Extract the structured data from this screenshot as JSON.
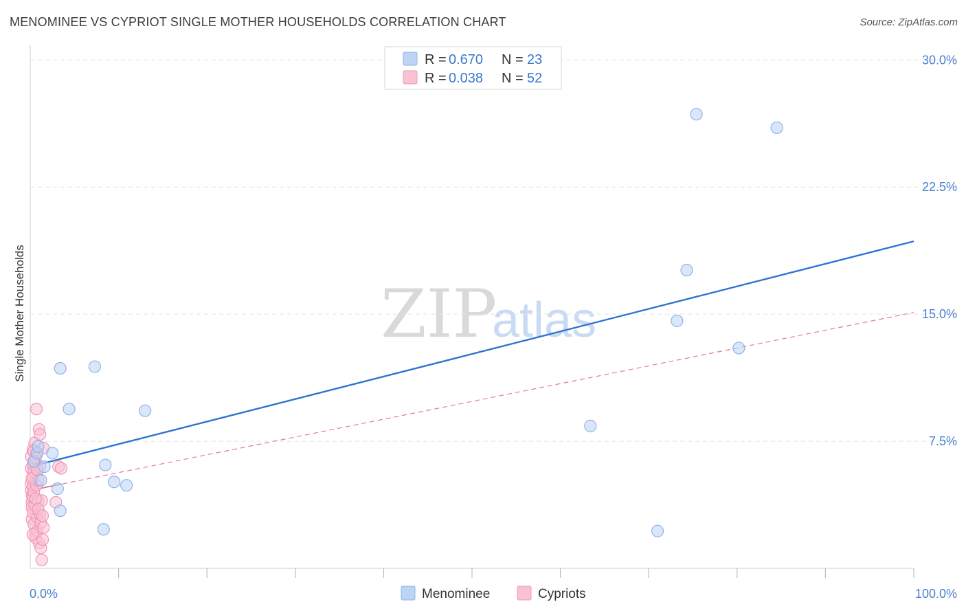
{
  "title": "MENOMINEE VS CYPRIOT SINGLE MOTHER HOUSEHOLDS CORRELATION CHART",
  "source": "Source: ZipAtlas.com",
  "watermark": {
    "zip": "ZIP",
    "atlas": "atlas"
  },
  "colors": {
    "blue_fill": "#bcd4f5",
    "blue_stroke": "#8fb3e6",
    "blue_line": "#2f74d0",
    "pink_fill": "#f9c1d3",
    "pink_stroke": "#f098b6",
    "pink_line": "#e07a9a",
    "grid": "#e3e3e3",
    "axis_text": "#4a7fd0"
  },
  "legend": {
    "rows": [
      {
        "r_label": "R = ",
        "r_value": "0.670",
        "n_label": "N = ",
        "n_value": "23"
      },
      {
        "r_label": "R = ",
        "r_value": "0.038",
        "n_label": "N = ",
        "n_value": "52"
      }
    ]
  },
  "bottom_legend": {
    "series1": "Menominee",
    "series2": "Cypriots"
  },
  "chart_data": {
    "type": "scatter",
    "title": "MENOMINEE VS CYPRIOT SINGLE MOTHER HOUSEHOLDS CORRELATION CHART",
    "xlabel": "",
    "ylabel": "Single Mother Households",
    "xlim": [
      0,
      100
    ],
    "ylim": [
      0,
      30.7
    ],
    "x_tick_labels": {
      "min": "0.0%",
      "max": "100.0%"
    },
    "y_ticks": [
      {
        "value": 30.0,
        "label": "30.0%"
      },
      {
        "value": 22.5,
        "label": "22.5%"
      },
      {
        "value": 15.0,
        "label": "15.0%"
      },
      {
        "value": 7.5,
        "label": "7.5%"
      }
    ],
    "series": [
      {
        "name": "Menominee",
        "color": "blue",
        "R": 0.67,
        "N": 23,
        "trend": {
          "x0": 0,
          "y0": 6.0,
          "x1": 100,
          "y1": 19.3,
          "style": "solid"
        },
        "points": [
          [
            0.4,
            6.3
          ],
          [
            0.8,
            6.8
          ],
          [
            0.9,
            7.2
          ],
          [
            1.2,
            5.2
          ],
          [
            1.6,
            6.0
          ],
          [
            2.5,
            6.8
          ],
          [
            3.4,
            11.8
          ],
          [
            3.4,
            3.4
          ],
          [
            3.1,
            4.7
          ],
          [
            4.4,
            9.4
          ],
          [
            7.3,
            11.9
          ],
          [
            8.3,
            2.3
          ],
          [
            8.5,
            6.1
          ],
          [
            9.5,
            5.1
          ],
          [
            10.9,
            4.9
          ],
          [
            13.0,
            9.3
          ],
          [
            63.4,
            8.4
          ],
          [
            71.0,
            2.2
          ],
          [
            74.3,
            17.6
          ],
          [
            73.2,
            14.6
          ],
          [
            75.4,
            26.8
          ],
          [
            80.2,
            13.0
          ],
          [
            84.5,
            26.0
          ]
        ]
      },
      {
        "name": "Cypriots",
        "color": "pink",
        "R": 0.038,
        "N": 52,
        "trend": {
          "x0": 0,
          "y0": 4.6,
          "x1": 100,
          "y1": 15.1,
          "style": "dashed"
        },
        "points": [
          [
            0.1,
            6.6
          ],
          [
            0.1,
            5.9
          ],
          [
            0.1,
            5.0
          ],
          [
            0.1,
            4.6
          ],
          [
            0.2,
            4.3
          ],
          [
            0.2,
            3.9
          ],
          [
            0.2,
            3.6
          ],
          [
            0.2,
            2.9
          ],
          [
            0.3,
            7.0
          ],
          [
            0.3,
            6.1
          ],
          [
            0.3,
            5.4
          ],
          [
            0.3,
            4.8
          ],
          [
            0.3,
            4.2
          ],
          [
            0.3,
            3.3
          ],
          [
            0.4,
            2.6
          ],
          [
            0.4,
            5.7
          ],
          [
            0.4,
            4.5
          ],
          [
            0.5,
            7.4
          ],
          [
            0.5,
            6.3
          ],
          [
            0.5,
            3.7
          ],
          [
            0.6,
            2.1
          ],
          [
            0.6,
            1.8
          ],
          [
            0.7,
            9.4
          ],
          [
            0.7,
            6.8
          ],
          [
            0.7,
            4.9
          ],
          [
            0.8,
            3.0
          ],
          [
            0.8,
            2.2
          ],
          [
            0.9,
            5.2
          ],
          [
            0.9,
            4.0
          ],
          [
            1.0,
            8.2
          ],
          [
            1.0,
            1.5
          ],
          [
            1.1,
            7.9
          ],
          [
            1.1,
            6.0
          ],
          [
            1.1,
            3.2
          ],
          [
            1.2,
            2.7
          ],
          [
            1.2,
            1.2
          ],
          [
            1.3,
            4.0
          ],
          [
            1.3,
            0.5
          ],
          [
            1.4,
            1.7
          ],
          [
            1.5,
            7.1
          ],
          [
            1.5,
            2.4
          ],
          [
            0.2,
            5.3
          ],
          [
            0.6,
            4.1
          ],
          [
            0.9,
            3.5
          ],
          [
            0.4,
            6.9
          ],
          [
            0.8,
            5.8
          ],
          [
            1.4,
            3.1
          ],
          [
            0.3,
            2.0
          ],
          [
            0.6,
            6.5
          ],
          [
            3.2,
            6.0
          ],
          [
            3.5,
            5.9
          ],
          [
            2.9,
            3.9
          ]
        ]
      }
    ]
  }
}
